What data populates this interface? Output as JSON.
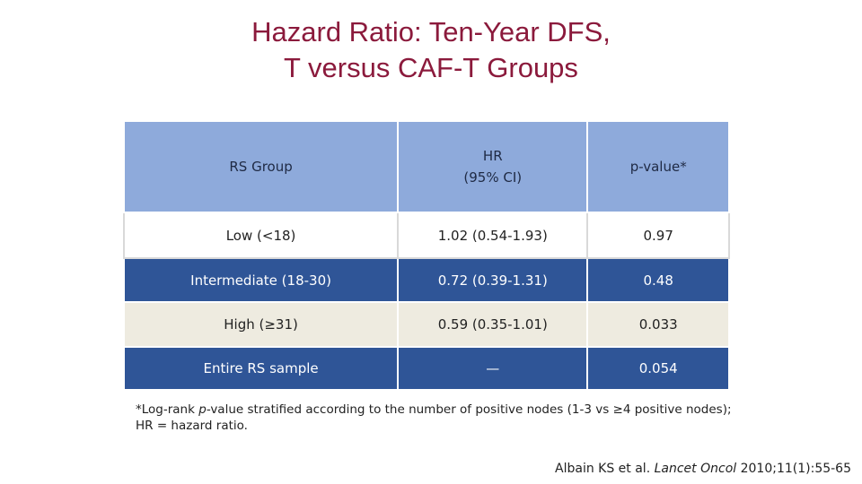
{
  "title": {
    "line1": "Hazard Ratio: Ten-Year DFS,",
    "line2": "T versus CAF-T Groups"
  },
  "table": {
    "headers": {
      "col1": "RS Group",
      "col2_line1": "HR",
      "col2_line2": "(95% CI)",
      "col3": "p-value*"
    },
    "rows": [
      {
        "group": "Low (<18)",
        "hr": "1.02 (0.54-1.93)",
        "p": "0.97"
      },
      {
        "group": "Intermediate (18-30)",
        "hr": "0.72 (0.39-1.31)",
        "p": "0.48"
      },
      {
        "group": "High (≥31)",
        "hr": "0.59 (0.35-1.01)",
        "p": "0.033"
      },
      {
        "group": "Entire RS sample",
        "hr": "—",
        "p": "0.054"
      }
    ]
  },
  "footnote": {
    "prefix": "*Log-rank ",
    "italic": "p",
    "suffix": "-value stratified according to the number of positive nodes (1-3 vs ≥4 positive nodes); HR = hazard ratio."
  },
  "citation": {
    "authors": "Albain KS et al. ",
    "journal": "Lancet Oncol",
    "details": " 2010;11(1):55-65"
  },
  "colors": {
    "title": "#8b1a3c",
    "header_bg": "#8eaadb",
    "row_blue": "#2f5597",
    "row_beige": "#eeebe0"
  }
}
